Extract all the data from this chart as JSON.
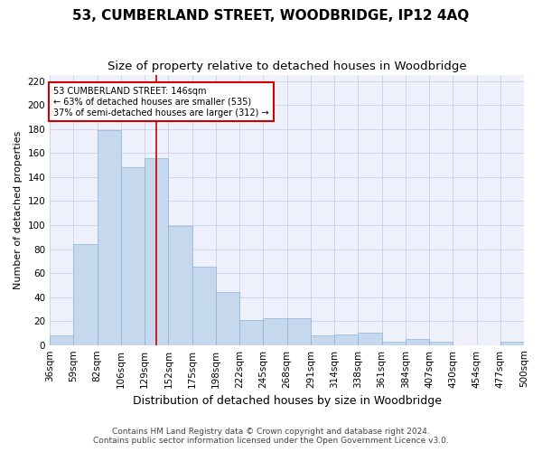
{
  "title": "53, CUMBERLAND STREET, WOODBRIDGE, IP12 4AQ",
  "subtitle": "Size of property relative to detached houses in Woodbridge",
  "xlabel": "Distribution of detached houses by size in Woodbridge",
  "ylabel": "Number of detached properties",
  "bar_values": [
    8,
    84,
    179,
    148,
    156,
    99,
    65,
    44,
    21,
    22,
    22,
    8,
    9,
    10,
    3,
    5,
    3,
    0,
    0,
    3
  ],
  "bar_color": "#c5d8ed",
  "bar_edge_color": "#8ab4d4",
  "categories": [
    "36sqm",
    "59sqm",
    "82sqm",
    "106sqm",
    "129sqm",
    "152sqm",
    "175sqm",
    "198sqm",
    "222sqm",
    "245sqm",
    "268sqm",
    "291sqm",
    "314sqm",
    "338sqm",
    "361sqm",
    "384sqm",
    "407sqm",
    "430sqm",
    "454sqm",
    "477sqm",
    "500sqm"
  ],
  "vline_x": 4.5,
  "vline_color": "#cc0000",
  "annotation_text": "53 CUMBERLAND STREET: 146sqm\n← 63% of detached houses are smaller (535)\n37% of semi-detached houses are larger (312) →",
  "annotation_box_color": "#ffffff",
  "annotation_box_edge": "#cc0000",
  "ylim": [
    0,
    225
  ],
  "yticks": [
    0,
    20,
    40,
    60,
    80,
    100,
    120,
    140,
    160,
    180,
    200,
    220
  ],
  "grid_color": "#c8d0e8",
  "footer_line1": "Contains HM Land Registry data © Crown copyright and database right 2024.",
  "footer_line2": "Contains public sector information licensed under the Open Government Licence v3.0.",
  "title_fontsize": 11,
  "subtitle_fontsize": 9.5,
  "xlabel_fontsize": 9,
  "ylabel_fontsize": 8,
  "tick_fontsize": 7.5,
  "footer_fontsize": 6.5
}
